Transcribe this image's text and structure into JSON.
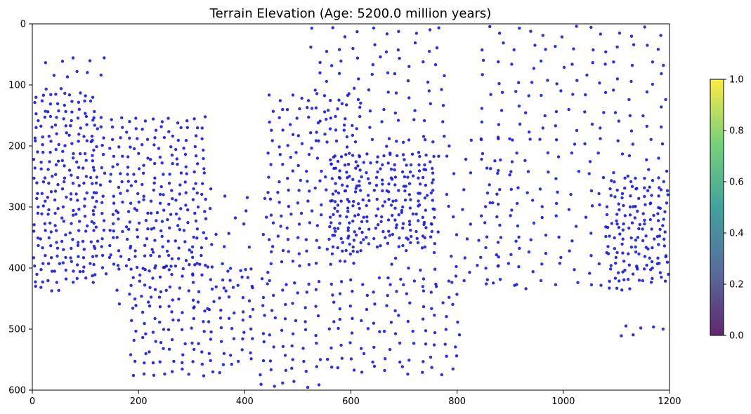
{
  "chart_data": {
    "type": "scatter",
    "title": "Terrain Elevation (Age: 5200.0 million years)",
    "xlabel": "",
    "ylabel": "",
    "xlim": [
      0,
      1200
    ],
    "ylim": [
      600,
      0
    ],
    "y_inverted": true,
    "grid": false,
    "x_ticks": [
      0,
      200,
      400,
      600,
      800,
      1000,
      1200
    ],
    "y_ticks": [
      0,
      100,
      200,
      300,
      400,
      500,
      600
    ],
    "marker_color": "#1a1ad6",
    "colorbar": {
      "range": [
        0,
        1
      ],
      "ticks": [
        "0.0",
        "0.2",
        "0.4",
        "0.6",
        "0.8",
        "1.0"
      ],
      "colormap": "viridis"
    },
    "series": [
      {
        "point_count_estimate": 1500,
        "clusters": [
          {
            "x": [
              0,
              120
            ],
            "y": [
              110,
              440
            ],
            "n": 220
          },
          {
            "x": [
              20,
              150
            ],
            "y": [
              50,
              110
            ],
            "n": 12
          },
          {
            "x": [
              110,
              330
            ],
            "y": [
              150,
              420
            ],
            "n": 240
          },
          {
            "x": [
              140,
              460
            ],
            "y": [
              260,
              480
            ],
            "n": 60
          },
          {
            "x": [
              180,
              420
            ],
            "y": [
              390,
              580
            ],
            "n": 140
          },
          {
            "x": [
              440,
              620
            ],
            "y": [
              110,
              400
            ],
            "n": 150
          },
          {
            "x": [
              520,
              780
            ],
            "y": [
              0,
              200
            ],
            "n": 80
          },
          {
            "x": [
              560,
              760
            ],
            "y": [
              210,
              380
            ],
            "n": 200
          },
          {
            "x": [
              420,
              810
            ],
            "y": [
              410,
              600
            ],
            "n": 150
          },
          {
            "x": [
              660,
              920
            ],
            "y": [
              180,
              440
            ],
            "n": 90
          },
          {
            "x": [
              840,
              1200
            ],
            "y": [
              0,
              440
            ],
            "n": 220
          },
          {
            "x": [
              1080,
              1200
            ],
            "y": [
              250,
              440
            ],
            "n": 120
          },
          {
            "x": [
              1100,
              1200
            ],
            "y": [
              490,
              520
            ],
            "n": 6
          }
        ]
      }
    ]
  }
}
